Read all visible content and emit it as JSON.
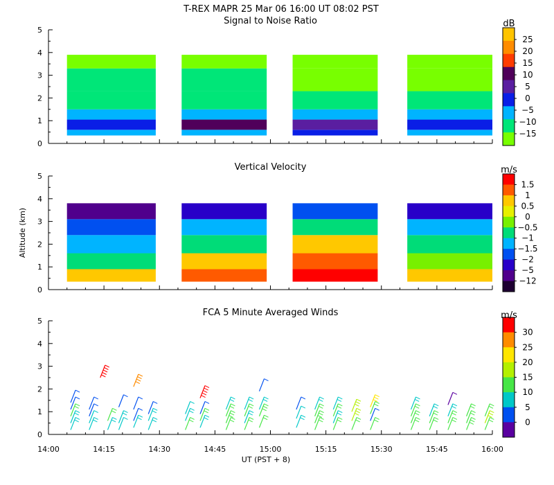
{
  "header": {
    "title": "T-REX   MAPR 25 Mar 06   16:00 UT   08:02   PST"
  },
  "chart_data": [
    {
      "type": "heatmap",
      "title": "Signal to Noise Ratio",
      "ylabel": "",
      "ylim": [
        0,
        5
      ],
      "yticks": [
        "0",
        "1",
        "2",
        "3",
        "4",
        "5"
      ],
      "colorbar": {
        "unit": "dB",
        "labels": [
          "25",
          "20",
          "15",
          "10",
          "5",
          "0",
          "−5",
          "−10",
          "−15"
        ],
        "colors": [
          "#ffc400",
          "#ff8c00",
          "#ff3c00",
          "#50005a",
          "#5a1ea0",
          "#0a1ee6",
          "#00b4ff",
          "#00e678",
          "#78ff00"
        ]
      },
      "data_blocks": [
        {
          "start": "14:05",
          "end": "14:29"
        },
        {
          "start": "14:36",
          "end": "14:59"
        },
        {
          "start": "15:06",
          "end": "15:29"
        },
        {
          "start": "15:37",
          "end": "16:00"
        }
      ],
      "ybands": [
        {
          "y0": 0.35,
          "y1": 0.6,
          "colors": [
            "#00b4ff",
            "#00b4ff",
            "#0a1ee6",
            "#00b4ff"
          ]
        },
        {
          "y0": 0.6,
          "y1": 1.05,
          "colors": [
            "#0a1ee6",
            "#50005a",
            "#5a1ea0",
            "#0a1ee6"
          ]
        },
        {
          "y0": 1.05,
          "y1": 1.5,
          "colors": [
            "#00b4ff",
            "#00b4ff",
            "#00b4ff",
            "#00b4ff"
          ]
        },
        {
          "y0": 1.5,
          "y1": 2.3,
          "colors": [
            "#00e678",
            "#00e678",
            "#00e678",
            "#00e678"
          ]
        },
        {
          "y0": 2.3,
          "y1": 3.3,
          "colors": [
            "#00e678",
            "#00e678",
            "#78ff00",
            "#78ff00"
          ]
        },
        {
          "y0": 3.3,
          "y1": 3.9,
          "colors": [
            "#78ff00",
            "#78ff00",
            "#78ff00",
            "#78ff00"
          ]
        }
      ]
    },
    {
      "type": "heatmap",
      "title": "Vertical Velocity",
      "ylabel": "Altitude (km)",
      "ylim": [
        0,
        5
      ],
      "yticks": [
        "0",
        "1",
        "2",
        "3",
        "4",
        "5"
      ],
      "colorbar": {
        "unit": "m/s",
        "labels": [
          "1.5",
          "1",
          "0.5",
          "0",
          "−0.5",
          "−1",
          "−1.5",
          "−2",
          "−5",
          "−12"
        ],
        "colors": [
          "#ff0000",
          "#ff5a00",
          "#ffc800",
          "#e6f000",
          "#78f000",
          "#00dc78",
          "#00b4ff",
          "#0050f0",
          "#2800c8",
          "#50008c",
          "#1e0032"
        ]
      },
      "data_blocks": [
        {
          "start": "14:05",
          "end": "14:29"
        },
        {
          "start": "14:36",
          "end": "14:59"
        },
        {
          "start": "15:06",
          "end": "15:29"
        },
        {
          "start": "15:37",
          "end": "16:00"
        }
      ],
      "ybands": [
        {
          "y0": 0.35,
          "y1": 0.9,
          "colors": [
            "#ffc800",
            "#ff5a00",
            "#ff0000",
            "#ffc800"
          ]
        },
        {
          "y0": 0.9,
          "y1": 1.6,
          "colors": [
            "#00dc78",
            "#ffc800",
            "#ff5a00",
            "#78f000"
          ]
        },
        {
          "y0": 1.6,
          "y1": 2.4,
          "colors": [
            "#00b4ff",
            "#00dc78",
            "#ffc800",
            "#00dc78"
          ]
        },
        {
          "y0": 2.4,
          "y1": 3.1,
          "colors": [
            "#0050f0",
            "#00b4ff",
            "#00dc78",
            "#00b4ff"
          ]
        },
        {
          "y0": 3.1,
          "y1": 3.8,
          "colors": [
            "#50008c",
            "#2800c8",
            "#0050f0",
            "#2800c8"
          ]
        }
      ]
    },
    {
      "type": "scatter",
      "title": "FCA 5 Minute Averaged Winds",
      "ylabel": "",
      "ylim": [
        0,
        5
      ],
      "yticks": [
        "0",
        "1",
        "2",
        "3",
        "4",
        "5"
      ],
      "xlabel": "UT  (PST + 8)",
      "xlim": [
        "14:00",
        "16:00"
      ],
      "xticks": [
        "14:00",
        "14:15",
        "14:30",
        "14:45",
        "15:00",
        "15:15",
        "15:30",
        "15:45",
        "16:00"
      ],
      "colorbar": {
        "unit": "m/s",
        "labels": [
          "30",
          "25",
          "20",
          "15",
          "10",
          "5",
          "0"
        ],
        "colors": [
          "#ff0000",
          "#ff8c00",
          "#ffe600",
          "#b4f000",
          "#46e646",
          "#00c8c8",
          "#0050f0",
          "#5a00a0"
        ]
      },
      "barbs": [
        {
          "time": "14:06",
          "altitudes": [
            0.2,
            0.5,
            0.8,
            1.1,
            1.4
          ],
          "speeds": [
            9,
            10,
            12,
            6,
            5
          ]
        },
        {
          "time": "14:11",
          "altitudes": [
            0.2,
            0.5,
            0.8,
            1.1
          ],
          "speeds": [
            10,
            7,
            5,
            4
          ]
        },
        {
          "time": "14:14",
          "altitudes": [
            2.5
          ],
          "speeds": [
            28
          ]
        },
        {
          "time": "14:16",
          "altitudes": [
            0.2,
            0.6
          ],
          "speeds": [
            9,
            11
          ]
        },
        {
          "time": "14:19",
          "altitudes": [
            0.2,
            0.5,
            1.2
          ],
          "speeds": [
            8,
            10,
            3
          ]
        },
        {
          "time": "14:23",
          "altitudes": [
            0.3,
            0.6,
            1.1,
            2.1
          ],
          "speeds": [
            10,
            6,
            4,
            25
          ]
        },
        {
          "time": "14:27",
          "altitudes": [
            0.2,
            0.6,
            0.9
          ],
          "speeds": [
            9,
            10,
            5
          ]
        },
        {
          "time": "14:37",
          "altitudes": [
            0.2,
            0.6,
            0.9
          ],
          "speeds": [
            11,
            9,
            8
          ]
        },
        {
          "time": "14:41",
          "altitudes": [
            0.3,
            0.6,
            0.9,
            1.6
          ],
          "speeds": [
            10,
            11,
            4,
            30
          ]
        },
        {
          "time": "14:48",
          "altitudes": [
            0.2,
            0.5,
            0.8,
            1.1
          ],
          "speeds": [
            12,
            15,
            11,
            9
          ]
        },
        {
          "time": "14:53",
          "altitudes": [
            0.2,
            0.5,
            0.8,
            1.1
          ],
          "speeds": [
            11,
            10,
            13,
            9
          ]
        },
        {
          "time": "14:57",
          "altitudes": [
            0.3,
            0.8,
            1.1,
            1.9
          ],
          "speeds": [
            12,
            15,
            9,
            3
          ]
        },
        {
          "time": "15:07",
          "altitudes": [
            0.3,
            0.7,
            1.1
          ],
          "speeds": [
            10,
            8,
            6
          ]
        },
        {
          "time": "15:12",
          "altitudes": [
            0.2,
            0.5,
            0.8,
            1.1
          ],
          "speeds": [
            14,
            15,
            12,
            10
          ]
        },
        {
          "time": "15:17",
          "altitudes": [
            0.2,
            0.5,
            0.8,
            1.1
          ],
          "speeds": [
            12,
            10,
            11,
            9
          ]
        },
        {
          "time": "15:22",
          "altitudes": [
            0.2,
            0.6,
            1.0
          ],
          "speeds": [
            13,
            16,
            18
          ]
        },
        {
          "time": "15:27",
          "altitudes": [
            0.2,
            0.6,
            0.9,
            1.2
          ],
          "speeds": [
            11,
            4,
            12,
            20
          ]
        },
        {
          "time": "15:38",
          "altitudes": [
            0.2,
            0.5,
            0.8,
            1.1
          ],
          "speeds": [
            14,
            12,
            11,
            10
          ]
        },
        {
          "time": "15:43",
          "altitudes": [
            0.2,
            0.5,
            0.8
          ],
          "speeds": [
            12,
            13,
            9
          ]
        },
        {
          "time": "15:48",
          "altitudes": [
            0.2,
            0.5,
            0.8,
            1.3
          ],
          "speeds": [
            14,
            12,
            10,
            2
          ]
        },
        {
          "time": "15:53",
          "altitudes": [
            0.2,
            0.5,
            0.8
          ],
          "speeds": [
            15,
            13,
            11
          ]
        },
        {
          "time": "15:58",
          "altitudes": [
            0.2,
            0.5,
            0.8
          ],
          "speeds": [
            12,
            16,
            11
          ]
        }
      ]
    }
  ]
}
